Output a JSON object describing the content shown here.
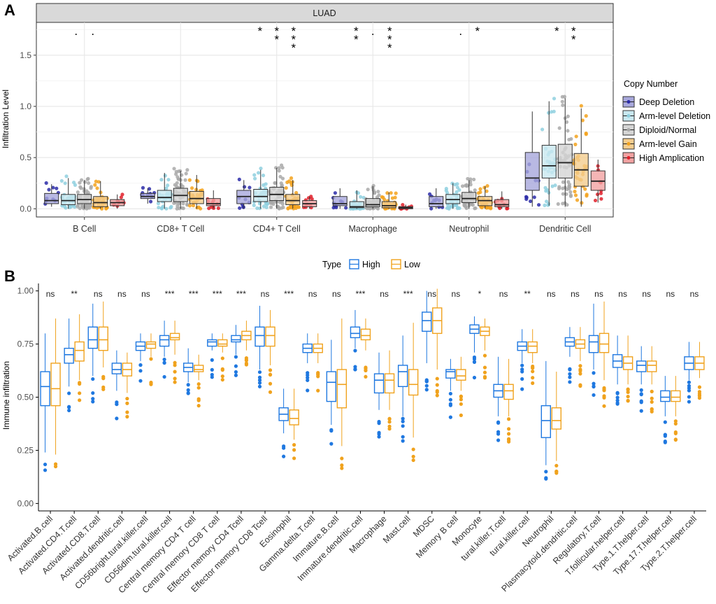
{
  "panel_a": {
    "letter": "A",
    "strip_label": "LUAD",
    "legend_title": "Copy Number"
  },
  "panel_b": {
    "letter": "B",
    "legend_title": "Type"
  },
  "chart_data": [
    {
      "type": "boxplot",
      "title": "LUAD",
      "xlabel": "",
      "ylabel": "Infiltration Level",
      "ylim": [
        -0.08,
        1.82
      ],
      "yticks": [
        "0.0",
        "0.5",
        "1.0",
        "1.5"
      ],
      "ytick_values": [
        0,
        0.5,
        1.0,
        1.5
      ],
      "legend_title": "Copy Number",
      "legend_position": "right",
      "grid": true,
      "categories": [
        "B Cell",
        "CD8+ T Cell",
        "CD4+ T Cell",
        "Macrophage",
        "Neutrophil",
        "Dendritic Cell"
      ],
      "significance": [
        ". .",
        "",
        "* ** ***",
        "** . ***",
        ". *",
        "* **"
      ],
      "series": [
        {
          "name": "Deep Deletion",
          "color": "#2b2ba8",
          "fill": "#a8a8dc",
          "values": [
            [
              0.02,
              0.05,
              0.08,
              0.15,
              0.24
            ],
            [
              0.05,
              0.1,
              0.12,
              0.15,
              0.2
            ],
            [
              0.0,
              0.05,
              0.12,
              0.18,
              0.28
            ],
            [
              0.0,
              0.03,
              0.05,
              0.12,
              0.2
            ],
            [
              0.0,
              0.02,
              0.05,
              0.12,
              0.2
            ],
            [
              0.02,
              0.18,
              0.3,
              0.55,
              0.95
            ]
          ]
        },
        {
          "name": "Arm-level Deletion",
          "color": "#8fd0df",
          "fill": "#c9e8f0",
          "values": [
            [
              0.0,
              0.04,
              0.08,
              0.14,
              0.3
            ],
            [
              0.0,
              0.07,
              0.11,
              0.18,
              0.35
            ],
            [
              0.0,
              0.07,
              0.12,
              0.19,
              0.38
            ],
            [
              0.0,
              0.01,
              0.02,
              0.07,
              0.18
            ],
            [
              0.0,
              0.05,
              0.09,
              0.14,
              0.25
            ],
            [
              0.03,
              0.3,
              0.42,
              0.62,
              1.05
            ]
          ]
        },
        {
          "name": "Diploid/Normal",
          "color": "#a9a9a9",
          "fill": "#d5d5d5",
          "values": [
            [
              0.0,
              0.05,
              0.09,
              0.14,
              0.28
            ],
            [
              0.0,
              0.07,
              0.13,
              0.2,
              0.37
            ],
            [
              0.0,
              0.08,
              0.14,
              0.21,
              0.4
            ],
            [
              0.0,
              0.02,
              0.04,
              0.1,
              0.22
            ],
            [
              0.0,
              0.06,
              0.1,
              0.16,
              0.28
            ],
            [
              0.02,
              0.3,
              0.45,
              0.63,
              1.08
            ]
          ]
        },
        {
          "name": "Arm-level Gain",
          "color": "#f3a21c",
          "fill": "#f4cd8f",
          "values": [
            [
              0.0,
              0.02,
              0.06,
              0.12,
              0.27
            ],
            [
              0.0,
              0.05,
              0.1,
              0.17,
              0.33
            ],
            [
              0.0,
              0.04,
              0.08,
              0.14,
              0.28
            ],
            [
              0.0,
              0.01,
              0.03,
              0.07,
              0.16
            ],
            [
              0.0,
              0.03,
              0.08,
              0.12,
              0.22
            ],
            [
              0.02,
              0.22,
              0.38,
              0.54,
              0.98
            ]
          ]
        },
        {
          "name": "High Amplication",
          "color": "#e0202a",
          "fill": "#f2a2a2",
          "values": [
            [
              0.0,
              0.03,
              0.06,
              0.09,
              0.14
            ],
            [
              0.0,
              0.03,
              0.05,
              0.1,
              0.18
            ],
            [
              0.0,
              0.02,
              0.05,
              0.08,
              0.12
            ],
            [
              0.0,
              0.0,
              0.01,
              0.02,
              0.04
            ],
            [
              0.0,
              0.02,
              0.04,
              0.09,
              0.17
            ],
            [
              0.06,
              0.18,
              0.27,
              0.37,
              0.48
            ]
          ]
        }
      ]
    },
    {
      "type": "boxplot",
      "title": "",
      "xlabel": "",
      "ylabel": "Immune infiltration",
      "ylim": [
        -0.035,
        1.035
      ],
      "yticks": [
        "0.00",
        "0.25",
        "0.50",
        "0.75",
        "1.00"
      ],
      "ytick_values": [
        0,
        0.25,
        0.5,
        0.75,
        1.0
      ],
      "legend_title": "Type",
      "legend_position": "top",
      "grid": false,
      "categories": [
        "Activated.B.cell",
        "Activated.CD4.T.cell",
        "Activated.CD8.T.cell",
        "Activated.dendritic.cell",
        "CD56bright.tural.killer.cell",
        "CD56dim.tural.killer.cell",
        "Central memory CD4 T cell",
        "Central memory CD8 T cell",
        "Effector memory CD4 Tcell",
        "Effector memory CD8 Tcell",
        "Eosinophil",
        "Gamma.delta.T.cell",
        "Immature.B.cell",
        "Immature.dendritic.cell",
        "Macrophage",
        "Mast.cell",
        "MDSC",
        "Memory B cell",
        "Monocyte",
        "tural.killer.T.cell",
        "tural.killer.cell",
        "Neutrophil",
        "Plasmacytoid.dendritic.cell",
        "Regulatory.T.cell",
        "T.follicular.helper.cell",
        "Type.1.T.helper.cell",
        "Type.17.T.helper.cell",
        "Type.2.T.helper.cell"
      ],
      "significance": [
        "ns",
        "**",
        "ns",
        "ns",
        "ns",
        "***",
        "***",
        "***",
        "***",
        "ns",
        "***",
        "ns",
        "ns",
        "***",
        "ns",
        "***",
        "ns",
        "ns",
        "*",
        "ns",
        "**",
        "ns",
        "ns",
        "ns",
        "ns",
        "ns",
        "ns",
        "ns"
      ],
      "series": [
        {
          "name": "High",
          "color": "#1f78e0",
          "values": [
            [
              0.24,
              0.46,
              0.55,
              0.62,
              0.8
            ],
            [
              0.55,
              0.66,
              0.7,
              0.73,
              0.87
            ],
            [
              0.6,
              0.73,
              0.77,
              0.83,
              0.94
            ],
            [
              0.53,
              0.61,
              0.63,
              0.66,
              0.72
            ],
            [
              0.67,
              0.72,
              0.74,
              0.76,
              0.8
            ],
            [
              0.69,
              0.74,
              0.77,
              0.79,
              0.86
            ],
            [
              0.57,
              0.62,
              0.64,
              0.66,
              0.73
            ],
            [
              0.72,
              0.74,
              0.76,
              0.77,
              0.8
            ],
            [
              0.7,
              0.76,
              0.77,
              0.79,
              0.84
            ],
            [
              0.63,
              0.74,
              0.79,
              0.83,
              0.93
            ],
            [
              0.33,
              0.39,
              0.42,
              0.45,
              0.54
            ],
            [
              0.66,
              0.71,
              0.73,
              0.75,
              0.8
            ],
            [
              0.37,
              0.48,
              0.57,
              0.62,
              0.77
            ],
            [
              0.73,
              0.78,
              0.8,
              0.83,
              0.91
            ],
            [
              0.44,
              0.52,
              0.58,
              0.61,
              0.71
            ],
            [
              0.41,
              0.55,
              0.62,
              0.65,
              0.79
            ],
            [
              0.66,
              0.81,
              0.86,
              0.9,
              1.0
            ],
            [
              0.53,
              0.59,
              0.62,
              0.63,
              0.68
            ],
            [
              0.71,
              0.8,
              0.82,
              0.84,
              0.88
            ],
            [
              0.41,
              0.5,
              0.53,
              0.56,
              0.69
            ],
            [
              0.66,
              0.72,
              0.74,
              0.76,
              0.82
            ],
            [
              0.18,
              0.31,
              0.39,
              0.46,
              0.67
            ],
            [
              0.69,
              0.74,
              0.76,
              0.78,
              0.83
            ],
            [
              0.63,
              0.71,
              0.76,
              0.79,
              0.94
            ],
            [
              0.56,
              0.64,
              0.67,
              0.7,
              0.79
            ],
            [
              0.56,
              0.62,
              0.65,
              0.67,
              0.74
            ],
            [
              0.41,
              0.48,
              0.5,
              0.53,
              0.6
            ],
            [
              0.58,
              0.63,
              0.66,
              0.69,
              0.76
            ]
          ]
        },
        {
          "name": "Low",
          "color": "#f0a21d",
          "values": [
            [
              0.23,
              0.46,
              0.54,
              0.66,
              0.87
            ],
            [
              0.58,
              0.67,
              0.72,
              0.76,
              0.89
            ],
            [
              0.64,
              0.72,
              0.77,
              0.83,
              0.95
            ],
            [
              0.52,
              0.6,
              0.63,
              0.66,
              0.71
            ],
            [
              0.69,
              0.73,
              0.75,
              0.76,
              0.8
            ],
            [
              0.7,
              0.77,
              0.78,
              0.8,
              0.86
            ],
            [
              0.58,
              0.62,
              0.63,
              0.65,
              0.7
            ],
            [
              0.71,
              0.74,
              0.75,
              0.77,
              0.8
            ],
            [
              0.72,
              0.77,
              0.79,
              0.81,
              0.86
            ],
            [
              0.65,
              0.74,
              0.79,
              0.83,
              0.91
            ],
            [
              0.3,
              0.37,
              0.4,
              0.44,
              0.54
            ],
            [
              0.66,
              0.71,
              0.73,
              0.75,
              0.8
            ],
            [
              0.27,
              0.45,
              0.56,
              0.63,
              0.87
            ],
            [
              0.72,
              0.77,
              0.79,
              0.82,
              0.87
            ],
            [
              0.44,
              0.52,
              0.58,
              0.61,
              0.72
            ],
            [
              0.31,
              0.51,
              0.56,
              0.63,
              0.85
            ],
            [
              0.63,
              0.8,
              0.86,
              0.92,
              1.01
            ],
            [
              0.53,
              0.58,
              0.6,
              0.63,
              0.69
            ],
            [
              0.72,
              0.79,
              0.81,
              0.83,
              0.87
            ],
            [
              0.41,
              0.49,
              0.53,
              0.56,
              0.68
            ],
            [
              0.66,
              0.71,
              0.74,
              0.76,
              0.82
            ],
            [
              0.2,
              0.35,
              0.39,
              0.45,
              0.62
            ],
            [
              0.67,
              0.73,
              0.75,
              0.77,
              0.83
            ],
            [
              0.58,
              0.71,
              0.75,
              0.8,
              0.95
            ],
            [
              0.56,
              0.63,
              0.66,
              0.69,
              0.79
            ],
            [
              0.56,
              0.62,
              0.65,
              0.67,
              0.74
            ],
            [
              0.41,
              0.48,
              0.5,
              0.53,
              0.6
            ],
            [
              0.59,
              0.63,
              0.66,
              0.69,
              0.76
            ]
          ]
        }
      ]
    }
  ]
}
